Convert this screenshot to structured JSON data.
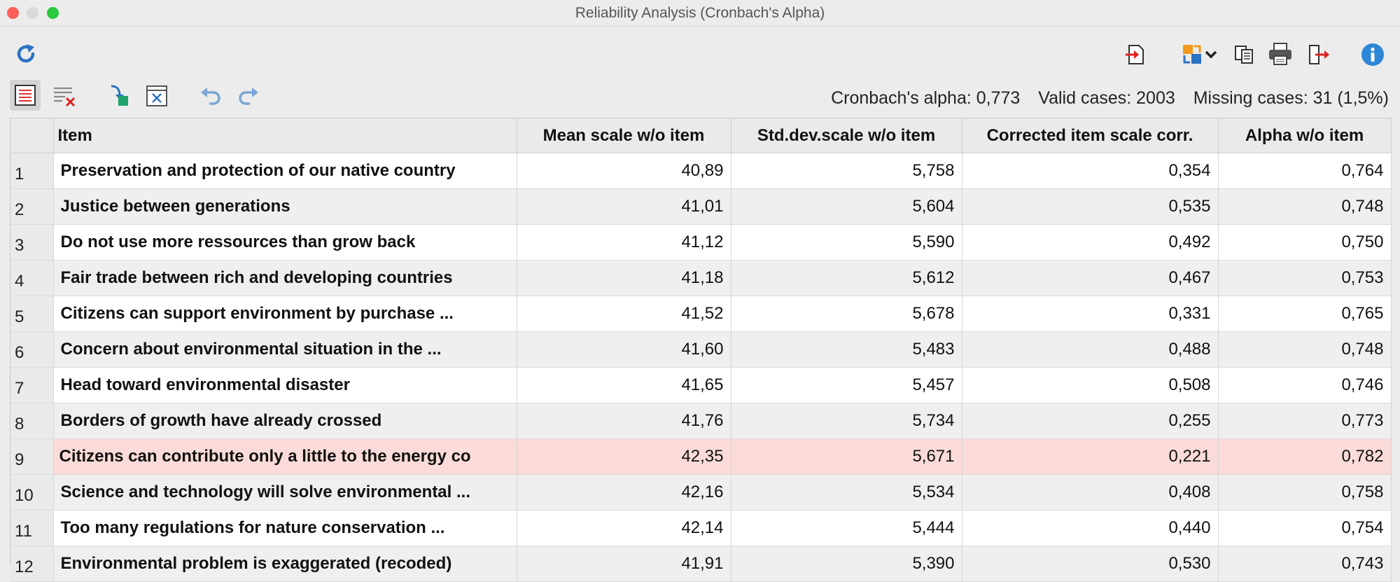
{
  "window": {
    "title": "Reliability Analysis (Cronbach's Alpha)"
  },
  "toolbar": {
    "top_icons": [
      "refresh-icon",
      "import-icon",
      "swap-icon",
      "copy-icon",
      "print-icon",
      "export-icon",
      "info-icon"
    ],
    "second_icons": [
      "list-view-icon",
      "delete-rows-icon",
      "move-icon",
      "clear-icon",
      "undo-icon",
      "redo-icon"
    ]
  },
  "stats": {
    "alpha": "Cronbach's alpha: 0,773",
    "valid": "Valid cases: 2003",
    "missing": "Missing cases: 31 (1,5%)"
  },
  "table": {
    "headers": {
      "item": "Item",
      "mean": "Mean scale w/o item",
      "sd": "Std.dev.scale w/o item",
      "corr": "Corrected item scale corr.",
      "alpha": "Alpha w/o item"
    },
    "rows": [
      {
        "n": "1",
        "item": "Preservation and protection of our native country",
        "mean": "40,89",
        "sd": "5,758",
        "corr": "0,354",
        "alpha": "0,764"
      },
      {
        "n": "2",
        "item": "Justice between generations",
        "mean": "41,01",
        "sd": "5,604",
        "corr": "0,535",
        "alpha": "0,748"
      },
      {
        "n": "3",
        "item": "Do not use more ressources than grow back",
        "mean": "41,12",
        "sd": "5,590",
        "corr": "0,492",
        "alpha": "0,750"
      },
      {
        "n": "4",
        "item": "Fair trade between rich and developing countries",
        "mean": "41,18",
        "sd": "5,612",
        "corr": "0,467",
        "alpha": "0,753"
      },
      {
        "n": "5",
        "item": "Citizens can support environment by purchase ...",
        "mean": "41,52",
        "sd": "5,678",
        "corr": "0,331",
        "alpha": "0,765"
      },
      {
        "n": "6",
        "item": "Concern about environmental situation in the ...",
        "mean": "41,60",
        "sd": "5,483",
        "corr": "0,488",
        "alpha": "0,748"
      },
      {
        "n": "7",
        "item": "Head toward environmental disaster",
        "mean": "41,65",
        "sd": "5,457",
        "corr": "0,508",
        "alpha": "0,746"
      },
      {
        "n": "8",
        "item": "Borders of growth have already crossed",
        "mean": "41,76",
        "sd": "5,734",
        "corr": "0,255",
        "alpha": "0,773"
      },
      {
        "n": "9",
        "item": "Citizens can contribute only a little to the energy co",
        "mean": "42,35",
        "sd": "5,671",
        "corr": "0,221",
        "alpha": "0,782"
      },
      {
        "n": "10",
        "item": "Science and technology will solve environmental ...",
        "mean": "42,16",
        "sd": "5,534",
        "corr": "0,408",
        "alpha": "0,758"
      },
      {
        "n": "11",
        "item": "Too many regulations for nature conservation ...",
        "mean": "42,14",
        "sd": "5,444",
        "corr": "0,440",
        "alpha": "0,754"
      },
      {
        "n": "12",
        "item": "Environmental problem is exaggerated (recoded)",
        "mean": "41,91",
        "sd": "5,390",
        "corr": "0,530",
        "alpha": "0,743"
      }
    ],
    "highlight_row": 9,
    "highlight_color": "#fbdbd9"
  }
}
